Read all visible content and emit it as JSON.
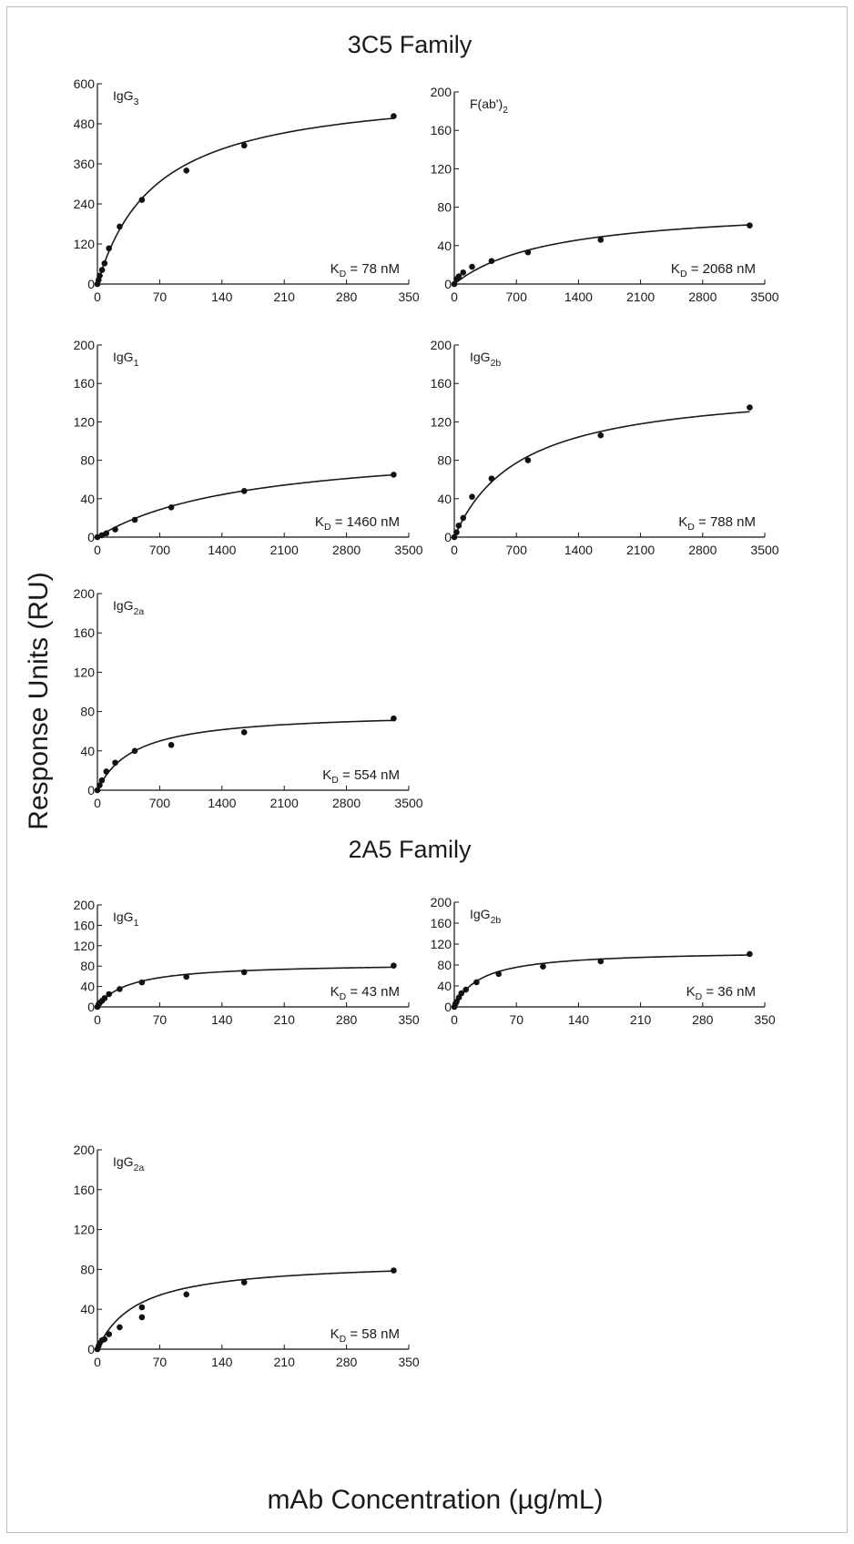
{
  "figure": {
    "ylabel": "Response Units (RU)",
    "xlabel": "mAb Concentration (µg/mL)",
    "families": [
      "3C5 Family",
      "2A5 Family"
    ]
  },
  "chart_data": [
    {
      "type": "scatter",
      "family": "3C5 Family",
      "label": {
        "main": "IgG",
        "sub": "3"
      },
      "kd": "K_D = 78 nM",
      "kd_parts": {
        "pre": "K",
        "sub": "D",
        "post": " = 78 nM"
      },
      "xlim": [
        0,
        350
      ],
      "xticks": [
        0,
        70,
        140,
        210,
        280,
        350
      ],
      "ylim": [
        0,
        600
      ],
      "yticks": [
        0,
        120,
        240,
        360,
        480,
        600
      ],
      "fit": {
        "bmax": 595,
        "k": 66
      },
      "points": [
        [
          0,
          0
        ],
        [
          1.3,
          12
        ],
        [
          2.6,
          25
        ],
        [
          5.2,
          42
        ],
        [
          8,
          62
        ],
        [
          13,
          107
        ],
        [
          25,
          172
        ],
        [
          50,
          252
        ],
        [
          100,
          340
        ],
        [
          165,
          415
        ],
        [
          333,
          503
        ]
      ]
    },
    {
      "type": "scatter",
      "family": "3C5 Family",
      "label": {
        "main": "F(ab')",
        "sub": "2"
      },
      "kd": "K_D = 2068 nM",
      "kd_parts": {
        "pre": "K",
        "sub": "D",
        "post": " = 2068 nM"
      },
      "xlim": [
        0,
        3500
      ],
      "xticks": [
        0,
        700,
        1400,
        2100,
        2800,
        3500
      ],
      "ylim": [
        0,
        200
      ],
      "yticks": [
        0,
        40,
        80,
        120,
        160,
        200
      ],
      "fit": {
        "bmax": 82,
        "k": 1100
      },
      "points": [
        [
          0,
          0
        ],
        [
          25,
          5
        ],
        [
          50,
          8
        ],
        [
          100,
          12
        ],
        [
          200,
          18
        ],
        [
          420,
          24
        ],
        [
          830,
          33
        ],
        [
          1650,
          46
        ],
        [
          3330,
          61
        ]
      ]
    },
    {
      "type": "scatter",
      "family": "3C5 Family",
      "label": {
        "main": "IgG",
        "sub": "1"
      },
      "kd": "K_D = 1460 nM",
      "kd_parts": {
        "pre": "K",
        "sub": "D",
        "post": " = 1460 nM"
      },
      "xlim": [
        0,
        3500
      ],
      "xticks": [
        0,
        700,
        1400,
        2100,
        2800,
        3500
      ],
      "ylim": [
        0,
        200
      ],
      "yticks": [
        0,
        40,
        80,
        120,
        160,
        200
      ],
      "fit": {
        "bmax": 98,
        "k": 1700
      },
      "points": [
        [
          0,
          0
        ],
        [
          50,
          2
        ],
        [
          100,
          4
        ],
        [
          200,
          8
        ],
        [
          420,
          18
        ],
        [
          830,
          31
        ],
        [
          1650,
          48
        ],
        [
          3330,
          65
        ]
      ]
    },
    {
      "type": "scatter",
      "family": "3C5 Family",
      "label": {
        "main": "IgG",
        "sub": "2b"
      },
      "kd": "K_D = 788 nM",
      "kd_parts": {
        "pre": "K",
        "sub": "D",
        "post": " = 788 nM"
      },
      "xlim": [
        0,
        3500
      ],
      "xticks": [
        0,
        700,
        1400,
        2100,
        2800,
        3500
      ],
      "ylim": [
        0,
        200
      ],
      "yticks": [
        0,
        40,
        80,
        120,
        160,
        200
      ],
      "fit": {
        "bmax": 160,
        "k": 750
      },
      "points": [
        [
          0,
          0
        ],
        [
          25,
          5
        ],
        [
          50,
          12
        ],
        [
          100,
          20
        ],
        [
          200,
          42
        ],
        [
          420,
          61
        ],
        [
          830,
          80
        ],
        [
          1650,
          106
        ],
        [
          3330,
          135
        ]
      ]
    },
    {
      "type": "scatter",
      "family": "3C5 Family",
      "label": {
        "main": "IgG",
        "sub": "2a"
      },
      "kd": "K_D = 554 nM",
      "kd_parts": {
        "pre": "K",
        "sub": "D",
        "post": " = 554 nM"
      },
      "xlim": [
        0,
        3500
      ],
      "xticks": [
        0,
        700,
        1400,
        2100,
        2800,
        3500
      ],
      "ylim": [
        0,
        200
      ],
      "yticks": [
        0,
        40,
        80,
        120,
        160,
        200
      ],
      "fit": {
        "bmax": 80,
        "k": 420
      },
      "points": [
        [
          0,
          0
        ],
        [
          25,
          5
        ],
        [
          50,
          10
        ],
        [
          100,
          19
        ],
        [
          200,
          28
        ],
        [
          420,
          40
        ],
        [
          830,
          46
        ],
        [
          1650,
          59
        ],
        [
          3330,
          73
        ]
      ]
    },
    {
      "type": "scatter",
      "family": "2A5 Family",
      "label": {
        "main": "IgG",
        "sub": "1"
      },
      "kd": "K_D = 43 nM",
      "kd_parts": {
        "pre": "K",
        "sub": "D",
        "post": " = 43 nM"
      },
      "xlim": [
        0,
        350
      ],
      "xticks": [
        0,
        70,
        140,
        210,
        280,
        350
      ],
      "ylim": [
        0,
        200
      ],
      "yticks": [
        0,
        40,
        80,
        120,
        160,
        200
      ],
      "fit": {
        "bmax": 86,
        "k": 35
      },
      "points": [
        [
          0,
          0
        ],
        [
          1.3,
          5
        ],
        [
          2.6,
          8
        ],
        [
          5.2,
          12
        ],
        [
          8,
          17
        ],
        [
          13,
          25
        ],
        [
          25,
          35
        ],
        [
          50,
          48
        ],
        [
          100,
          59
        ],
        [
          165,
          68
        ],
        [
          333,
          81
        ]
      ]
    },
    {
      "type": "scatter",
      "family": "2A5 Family",
      "label": {
        "main": "IgG",
        "sub": "2b"
      },
      "kd": "K_D = 36 nM",
      "kd_parts": {
        "pre": "K",
        "sub": "D",
        "post": " = 36 nM"
      },
      "xlim": [
        0,
        350
      ],
      "xticks": [
        0,
        70,
        140,
        210,
        280,
        350
      ],
      "ylim": [
        0,
        200
      ],
      "yticks": [
        0,
        40,
        80,
        120,
        160,
        200
      ],
      "fit": {
        "bmax": 108,
        "k": 30
      },
      "points": [
        [
          0,
          0
        ],
        [
          1.3,
          6
        ],
        [
          2.6,
          10
        ],
        [
          5.2,
          18
        ],
        [
          8,
          26
        ],
        [
          13,
          33
        ],
        [
          25,
          47
        ],
        [
          50,
          63
        ],
        [
          100,
          77
        ],
        [
          165,
          87
        ],
        [
          333,
          101
        ]
      ]
    },
    {
      "type": "scatter",
      "family": "2A5 Family",
      "label": {
        "main": "IgG",
        "sub": "2a"
      },
      "kd": "K_D = 58 nM",
      "kd_parts": {
        "pre": "K",
        "sub": "D",
        "post": " = 58 nM"
      },
      "xlim": [
        0,
        350
      ],
      "xticks": [
        0,
        70,
        140,
        210,
        280,
        350
      ],
      "ylim": [
        0,
        200
      ],
      "yticks": [
        0,
        40,
        80,
        120,
        160,
        200
      ],
      "fit": {
        "bmax": 89,
        "k": 45
      },
      "points": [
        [
          0,
          0
        ],
        [
          1.3,
          3
        ],
        [
          2.6,
          6
        ],
        [
          5.2,
          9
        ],
        [
          8,
          10
        ],
        [
          13,
          15
        ],
        [
          25,
          22
        ],
        [
          50,
          32
        ],
        [
          50,
          42
        ],
        [
          100,
          55
        ],
        [
          165,
          67
        ],
        [
          333,
          79
        ]
      ]
    }
  ]
}
